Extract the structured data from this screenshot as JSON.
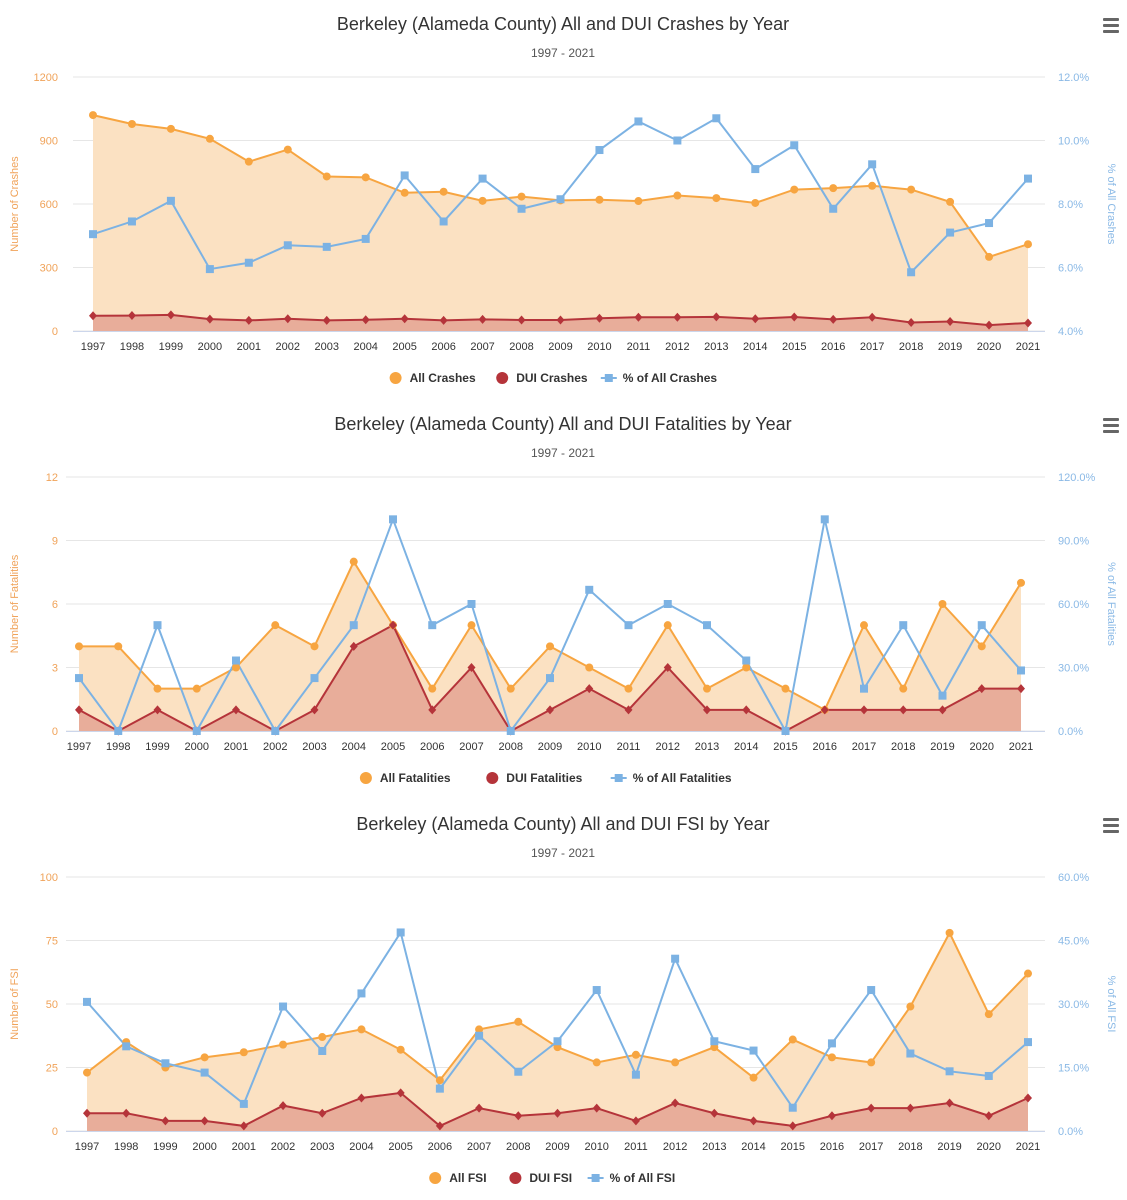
{
  "colors": {
    "all": "#f7a541",
    "all_fill": "#fbe1c2",
    "dui": "#b5343a",
    "dui_fill": "#e8ad9a",
    "pct": "#7cb2e3",
    "grid": "#e6e6e6",
    "left_axis_text": "#f0a35a",
    "right_axis_text": "#8ab9e6"
  },
  "chart_data": [
    {
      "type": "area",
      "title": "Berkeley (Alameda County) All and DUI Crashes by Year",
      "subtitle": "1997 - 2021",
      "ylabel": "Number of Crashes",
      "y2label": "% of All Crashes",
      "ylim": [
        0,
        1200
      ],
      "y_ticks": [
        "0",
        "300",
        "600",
        "900",
        "1200"
      ],
      "y2lim": [
        4.0,
        12.0
      ],
      "y2_ticks": [
        "4.0%",
        "6.0%",
        "8.0%",
        "10.0%",
        "12.0%"
      ],
      "x": [
        "1997",
        "1998",
        "1999",
        "2000",
        "2001",
        "2002",
        "2003",
        "2004",
        "2005",
        "2006",
        "2007",
        "2008",
        "2009",
        "2010",
        "2011",
        "2012",
        "2013",
        "2014",
        "2015",
        "2016",
        "2017",
        "2018",
        "2019",
        "2020",
        "2021"
      ],
      "series": [
        {
          "name": "All Crashes",
          "values": [
            1020,
            978,
            955,
            908,
            800,
            857,
            730,
            726,
            653,
            658,
            615,
            635,
            617,
            620,
            614,
            640,
            628,
            605,
            668,
            675,
            686,
            668,
            610,
            350,
            410
          ]
        },
        {
          "name": "DUI Crashes",
          "values": [
            72,
            73,
            76,
            56,
            50,
            58,
            50,
            53,
            58,
            50,
            55,
            52,
            52,
            60,
            65,
            65,
            67,
            58,
            66,
            55,
            65,
            40,
            45,
            28,
            38
          ]
        },
        {
          "name": "% of All Crashes",
          "values": [
            7.05,
            7.45,
            8.1,
            5.95,
            6.15,
            6.7,
            6.65,
            6.9,
            8.9,
            7.45,
            8.8,
            7.85,
            8.15,
            9.7,
            10.6,
            10.0,
            10.7,
            9.1,
            9.85,
            7.85,
            9.25,
            5.85,
            7.1,
            7.4,
            8.8
          ]
        }
      ],
      "legend": [
        "All Crashes",
        "DUI Crashes",
        "% of All Crashes"
      ],
      "legend_position": "bottom"
    },
    {
      "type": "area",
      "title": "Berkeley (Alameda County) All and DUI Fatalities by Year",
      "subtitle": "1997 - 2021",
      "ylabel": "Number of Fatalities",
      "y2label": "% of All Fatalities",
      "ylim": [
        0,
        12
      ],
      "y_ticks": [
        "0",
        "3",
        "6",
        "9",
        "12"
      ],
      "y2lim": [
        0,
        120
      ],
      "y2_ticks": [
        "0.0%",
        "30.0%",
        "60.0%",
        "90.0%",
        "120.0%"
      ],
      "x": [
        "1997",
        "1998",
        "1999",
        "2000",
        "2001",
        "2002",
        "2003",
        "2004",
        "2005",
        "2006",
        "2007",
        "2008",
        "2009",
        "2010",
        "2011",
        "2012",
        "2013",
        "2014",
        "2015",
        "2016",
        "2017",
        "2018",
        "2019",
        "2020",
        "2021"
      ],
      "series": [
        {
          "name": "All Fatalities",
          "values": [
            4,
            4,
            2,
            2,
            3,
            5,
            4,
            8,
            5,
            2,
            5,
            2,
            4,
            3,
            2,
            5,
            2,
            3,
            2,
            1,
            5,
            2,
            6,
            4,
            7
          ]
        },
        {
          "name": "DUI Fatalities",
          "values": [
            1,
            0,
            1,
            0,
            1,
            0,
            1,
            4,
            5,
            1,
            3,
            0,
            1,
            2,
            1,
            3,
            1,
            1,
            0,
            1,
            1,
            1,
            1,
            2,
            2
          ]
        },
        {
          "name": "% of All Fatalities",
          "values": [
            25,
            0,
            50,
            0,
            33.3,
            0,
            25,
            50,
            100,
            50,
            60,
            0,
            25,
            66.7,
            50,
            60,
            50,
            33.3,
            0,
            100,
            20,
            50,
            16.7,
            50,
            28.6
          ]
        }
      ],
      "legend": [
        "All Fatalities",
        "DUI Fatalities",
        "% of All Fatalities"
      ],
      "legend_position": "bottom"
    },
    {
      "type": "area",
      "title": "Berkeley (Alameda County) All and DUI FSI by Year",
      "subtitle": "1997 - 2021",
      "ylabel": "Number of FSI",
      "y2label": "% of All FSI",
      "ylim": [
        0,
        100
      ],
      "y_ticks": [
        "0",
        "25",
        "50",
        "75",
        "100"
      ],
      "y2lim": [
        0,
        60
      ],
      "y2_ticks": [
        "0.0%",
        "15.0%",
        "30.0%",
        "45.0%",
        "60.0%"
      ],
      "x": [
        "1997",
        "1998",
        "1999",
        "2000",
        "2001",
        "2002",
        "2003",
        "2004",
        "2005",
        "2006",
        "2007",
        "2008",
        "2009",
        "2010",
        "2011",
        "2012",
        "2013",
        "2014",
        "2015",
        "2016",
        "2017",
        "2018",
        "2019",
        "2020",
        "2021"
      ],
      "series": [
        {
          "name": "All FSI",
          "values": [
            23,
            35,
            25,
            29,
            31,
            34,
            37,
            40,
            32,
            20,
            40,
            43,
            33,
            27,
            30,
            27,
            33,
            21,
            36,
            29,
            27,
            49,
            78,
            46,
            62
          ]
        },
        {
          "name": "DUI FSI",
          "values": [
            7,
            7,
            4,
            4,
            2,
            10,
            7,
            13,
            15,
            2,
            9,
            6,
            7,
            9,
            4,
            11,
            7,
            4,
            2,
            6,
            9,
            9,
            11,
            6,
            13
          ]
        },
        {
          "name": "% of All FSI",
          "values": [
            30.5,
            20.0,
            16.0,
            13.8,
            6.4,
            29.4,
            18.9,
            32.5,
            46.9,
            10.0,
            22.5,
            14.0,
            21.2,
            33.3,
            13.3,
            40.7,
            21.2,
            19.0,
            5.5,
            20.7,
            33.3,
            18.3,
            14.1,
            13.0,
            21.0
          ]
        }
      ],
      "legend": [
        "All FSI",
        "DUI FSI",
        "% of All FSI"
      ],
      "legend_position": "bottom"
    }
  ]
}
